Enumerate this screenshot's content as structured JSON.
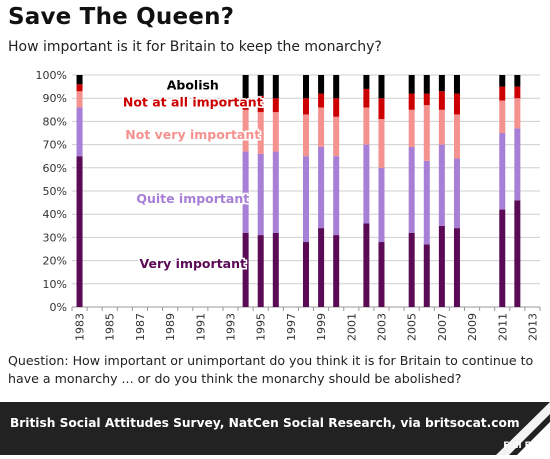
{
  "title": "Save The Queen?",
  "subtitle": "How important is it for Britain to keep the monarchy?",
  "question": "Question: How important or unimportant do you think it is for Britain to continue to have a monarchy ... or do you think the monarchy should be abolished?",
  "source": "British Social Attitudes Survey, NatCen Social Research, via britsocat.com",
  "brand": "Full Fact",
  "chart_data": {
    "type": "bar",
    "stacked": true,
    "ylim": [
      0,
      100
    ],
    "y_ticks": [
      "0%",
      "10%",
      "20%",
      "30%",
      "40%",
      "50%",
      "60%",
      "70%",
      "80%",
      "90%",
      "100%"
    ],
    "x_range": [
      1983,
      2013
    ],
    "x_tick_labels": [
      "1983",
      "1985",
      "1987",
      "1989",
      "1991",
      "1993",
      "1995",
      "1997",
      "1999",
      "2001",
      "2003",
      "2005",
      "2007",
      "2009",
      "2011",
      "2013"
    ],
    "grid": true,
    "categories": [
      "1983",
      "1994",
      "1995",
      "1996",
      "1998",
      "1999",
      "2000",
      "2002",
      "2003",
      "2005",
      "2006",
      "2007",
      "2008",
      "2011",
      "2012"
    ],
    "series": [
      {
        "name": "Very important",
        "color": "#5b0a56",
        "values": [
          65,
          32,
          31,
          32,
          28,
          34,
          31,
          36,
          28,
          32,
          27,
          35,
          34,
          42,
          46
        ]
      },
      {
        "name": "Quite important",
        "color": "#a77fd6",
        "values": [
          21,
          35,
          35,
          35,
          37,
          35,
          34,
          34,
          32,
          37,
          36,
          35,
          30,
          33,
          31
        ]
      },
      {
        "name": "Not very important",
        "color": "#f4928f",
        "values": [
          7,
          18,
          18,
          17,
          18,
          17,
          17,
          16,
          21,
          16,
          24,
          15,
          19,
          14,
          13
        ]
      },
      {
        "name": "Not at all important",
        "color": "#cc0000",
        "values": [
          3,
          5,
          7,
          6,
          7,
          6,
          8,
          8,
          9,
          7,
          5,
          8,
          9,
          6,
          5
        ]
      },
      {
        "name": "Abolish",
        "color": "#000000",
        "values": [
          4,
          10,
          9,
          10,
          10,
          8,
          10,
          6,
          10,
          8,
          8,
          7,
          8,
          5,
          5
        ]
      }
    ],
    "legend": [
      {
        "label": "Abolish",
        "color": "#000000",
        "at": 96
      },
      {
        "label": "Not at all important",
        "color": "#cc0000",
        "at": 88.5
      },
      {
        "label": "Not very important",
        "color": "#f4928f",
        "at": 74.5
      },
      {
        "label": "Quite important",
        "color": "#a77fd6",
        "at": 47
      },
      {
        "label": "Very important",
        "color": "#5b0a56",
        "at": 19
      }
    ]
  }
}
